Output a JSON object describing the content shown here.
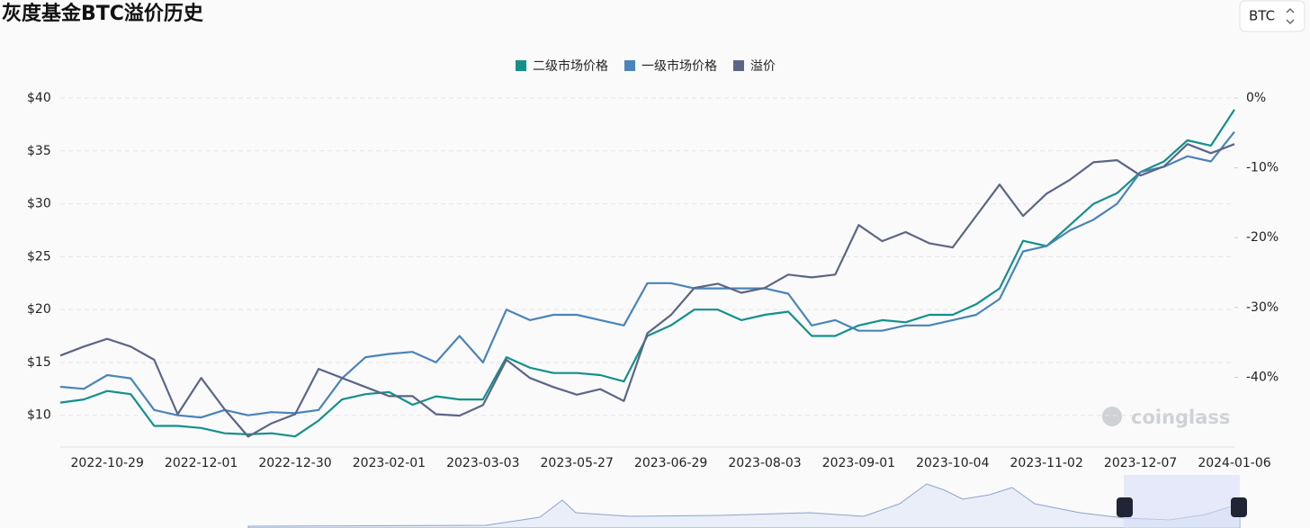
{
  "chart_data": {
    "type": "line",
    "title": "灰度基金BTC溢价历史",
    "categories": [
      null,
      null,
      "2022-10-29",
      null,
      null,
      null,
      "2022-12-01",
      null,
      null,
      null,
      "2022-12-30",
      null,
      null,
      null,
      "2023-02-01",
      null,
      null,
      null,
      "2023-03-03",
      null,
      null,
      null,
      "2023-05-27",
      null,
      null,
      null,
      "2023-06-29",
      null,
      null,
      null,
      "2023-08-03",
      null,
      null,
      null,
      "2023-09-01",
      null,
      null,
      null,
      "2023-10-04",
      null,
      null,
      null,
      "2023-11-02",
      null,
      null,
      null,
      "2023-12-07",
      null,
      null,
      null,
      "2024-01-06"
    ],
    "series": [
      {
        "name": "二级市场价格",
        "color": "#14908a",
        "values": [
          11.2,
          11.5,
          12.3,
          12.0,
          9.0,
          9.0,
          8.8,
          8.3,
          8.2,
          8.3,
          8.0,
          9.5,
          11.5,
          12.0,
          12.2,
          11.0,
          11.8,
          11.5,
          11.5,
          15.5,
          14.5,
          14.0,
          14.0,
          13.8,
          13.2,
          17.5,
          18.5,
          20.0,
          20.0,
          19.0,
          19.5,
          19.8,
          17.5,
          17.5,
          18.5,
          19.0,
          18.8,
          19.5,
          19.5,
          20.5,
          22.0,
          26.5,
          26.0,
          28.0,
          30.0,
          31.0,
          33.0,
          34.0,
          36.0,
          35.5,
          38.9
        ]
      },
      {
        "name": "一级市场价格",
        "color": "#4a84b8",
        "values": [
          12.7,
          12.5,
          13.8,
          13.5,
          10.5,
          10.0,
          9.8,
          10.5,
          10.0,
          10.3,
          10.2,
          10.5,
          13.5,
          15.5,
          15.8,
          16.0,
          15.0,
          17.5,
          15.0,
          20.0,
          19.0,
          19.5,
          19.5,
          19.0,
          18.5,
          22.5,
          22.5,
          22.0,
          22.0,
          22.0,
          22.0,
          21.5,
          18.5,
          19.0,
          18.0,
          18.0,
          18.5,
          18.5,
          19.0,
          19.5,
          21.0,
          25.5,
          26.0,
          27.5,
          28.5,
          30.0,
          33.0,
          33.5,
          34.5,
          34.0,
          36.8
        ]
      },
      {
        "name": "溢价",
        "color": "#5b6585",
        "axis": "y2",
        "values": [
          -36.9,
          -35.6,
          -34.5,
          -35.6,
          -37.5,
          -45.3,
          -40.1,
          -44.6,
          -48.5,
          -46.6,
          -45.3,
          -38.8,
          -40.1,
          -41.4,
          -42.7,
          -42.7,
          -45.3,
          -45.5,
          -44.0,
          -37.5,
          -40.1,
          -41.4,
          -42.5,
          -41.7,
          -43.4,
          -33.7,
          -31.1,
          -27.2,
          -26.6,
          -27.9,
          -27.2,
          -25.3,
          -25.7,
          -25.3,
          -18.2,
          -20.5,
          -19.2,
          -20.8,
          -21.4,
          -16.9,
          -12.4,
          -16.9,
          -13.7,
          -11.7,
          -9.2,
          -8.9,
          -11.1,
          -9.8,
          -6.6,
          -7.9,
          -6.6
        ]
      }
    ],
    "ylim": [
      7,
      40
    ],
    "yticks": [
      {
        "value": 10,
        "label": "$10"
      },
      {
        "value": 15,
        "label": "$15"
      },
      {
        "value": 20,
        "label": "$20"
      },
      {
        "value": 25,
        "label": "$25"
      },
      {
        "value": 30,
        "label": "$30"
      },
      {
        "value": 35,
        "label": "$35"
      },
      {
        "value": 40,
        "label": "$40"
      }
    ],
    "y2lim": [
      -50,
      0
    ],
    "y2ticks": [
      {
        "value": -40,
        "label": "-40%"
      },
      {
        "value": -30,
        "label": "-30%"
      },
      {
        "value": -20,
        "label": "-20%"
      },
      {
        "value": -10,
        "label": "-10%"
      },
      {
        "value": 0,
        "label": "0%"
      }
    ],
    "grid": true,
    "legend": "top"
  },
  "selector": {
    "value": "BTC"
  },
  "watermark": "coinglass"
}
